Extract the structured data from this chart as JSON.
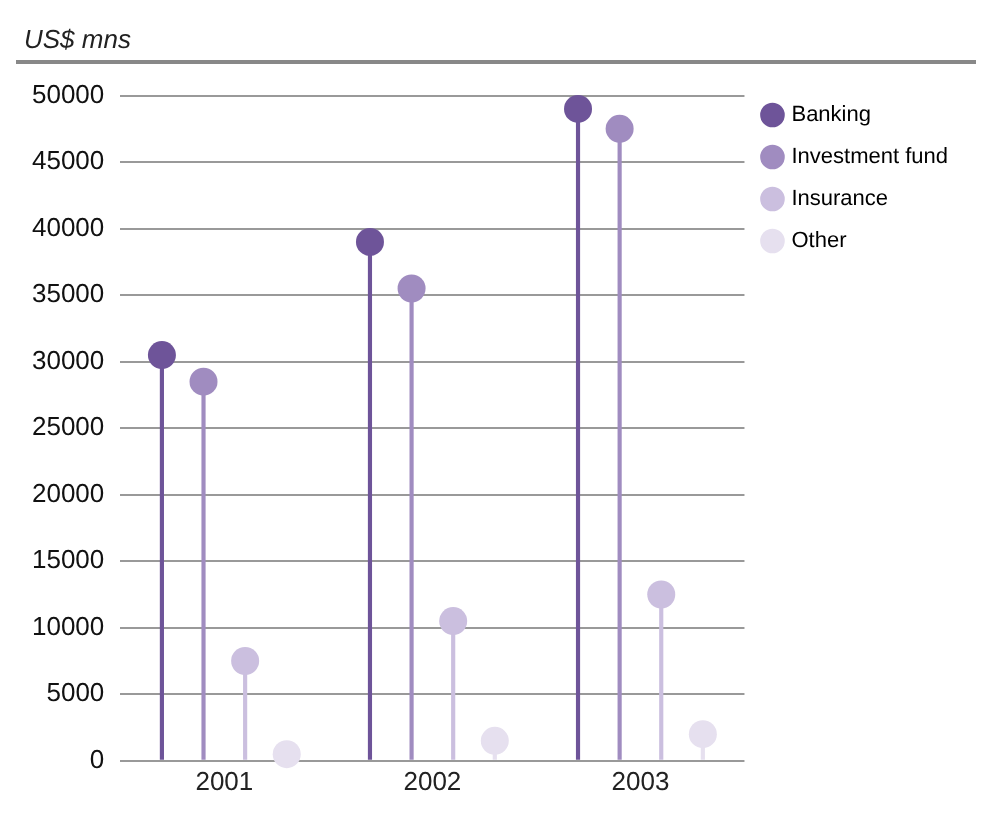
{
  "chart_data": {
    "type": "lollipop",
    "ylabel": "US$ mns",
    "categories": [
      "2001",
      "2002",
      "2003"
    ],
    "series": [
      {
        "name": "Banking",
        "color": "#6e5499",
        "values": [
          30500,
          39000,
          49000
        ]
      },
      {
        "name": "Investment fund",
        "color": "#a08cc0",
        "values": [
          28500,
          35500,
          47500
        ]
      },
      {
        "name": "Insurance",
        "color": "#cbbfdf",
        "values": [
          7500,
          10500,
          12500
        ]
      },
      {
        "name": "Other",
        "color": "#e6e0ef",
        "values": [
          500,
          1500,
          2000
        ]
      }
    ],
    "ylim": [
      0,
      50000
    ],
    "yticks": [
      0,
      5000,
      10000,
      15000,
      20000,
      25000,
      30000,
      35000,
      40000,
      45000,
      50000
    ],
    "grid": "y",
    "legend": "right",
    "marker": "circle"
  }
}
